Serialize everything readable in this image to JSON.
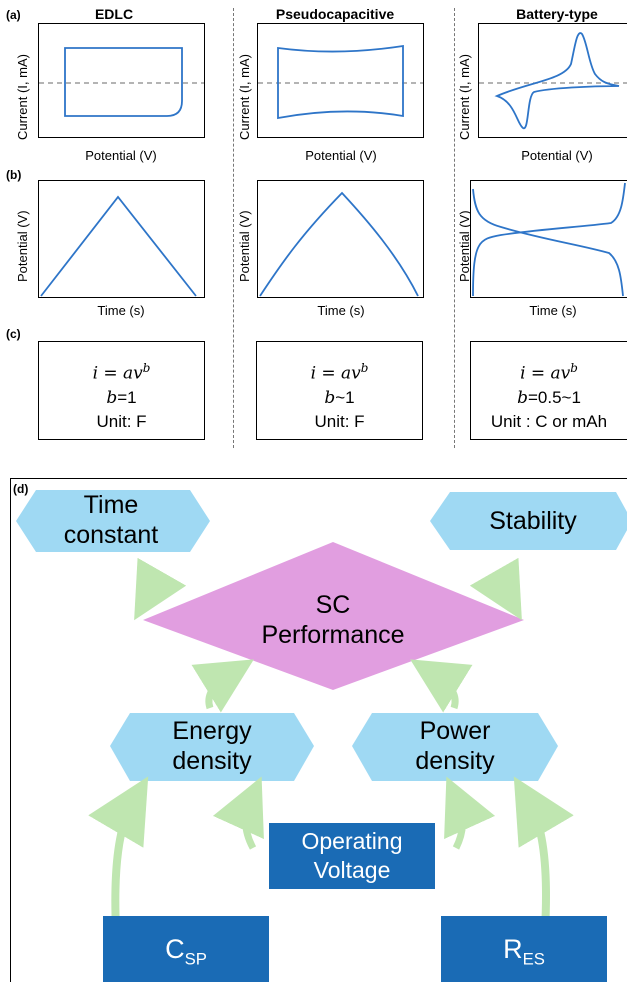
{
  "panel_labels": {
    "a": "(a)",
    "b": "(b)",
    "c": "(c)",
    "d": "(d)"
  },
  "columns": [
    {
      "title": "EDLC",
      "cv_ylabel": "Current (I, mA)",
      "cv_xlabel": "Potential (V)",
      "gcd_ylabel": "Potential (V)",
      "gcd_xlabel": "Time (s)",
      "eq_main": "i = av",
      "eq_exp": "b",
      "b_prefix": "b",
      "b_value": "=1",
      "unit": "Unit: F"
    },
    {
      "title": "Pseudocapacitive",
      "cv_ylabel": "Current (I, mA)",
      "cv_xlabel": "Potential (V)",
      "gcd_ylabel": "Potential (V)",
      "gcd_xlabel": "Time (s)",
      "eq_main": "i = av",
      "eq_exp": "b",
      "b_prefix": "b",
      "b_value": "~1",
      "unit": "Unit: F"
    },
    {
      "title": "Battery-type",
      "cv_ylabel": "Current (I, mA)",
      "cv_xlabel": "Potential (V)",
      "gcd_ylabel": "Potential (V)",
      "gcd_xlabel": "Time (s)",
      "eq_main": "i = av",
      "eq_exp": "b",
      "b_prefix": "b",
      "b_value": "=0.5~1",
      "unit": "Unit : C or mAh"
    }
  ],
  "diagram": {
    "time_constant": [
      "Time",
      "constant"
    ],
    "stability": "Stability",
    "sc_performance": [
      "SC",
      "Performance"
    ],
    "energy_density": [
      "Energy",
      "density"
    ],
    "power_density": [
      "Power",
      "density"
    ],
    "operating_voltage": [
      "Operating",
      "Voltage"
    ],
    "csp_main": "C",
    "csp_sub": "SP",
    "res_main": "R",
    "res_sub": "ES",
    "colors": {
      "hexagon": "#9fd9f3",
      "diamond": "#e19ee0",
      "box": "#1a6bb5",
      "arrow": "#bfe6b0"
    }
  }
}
